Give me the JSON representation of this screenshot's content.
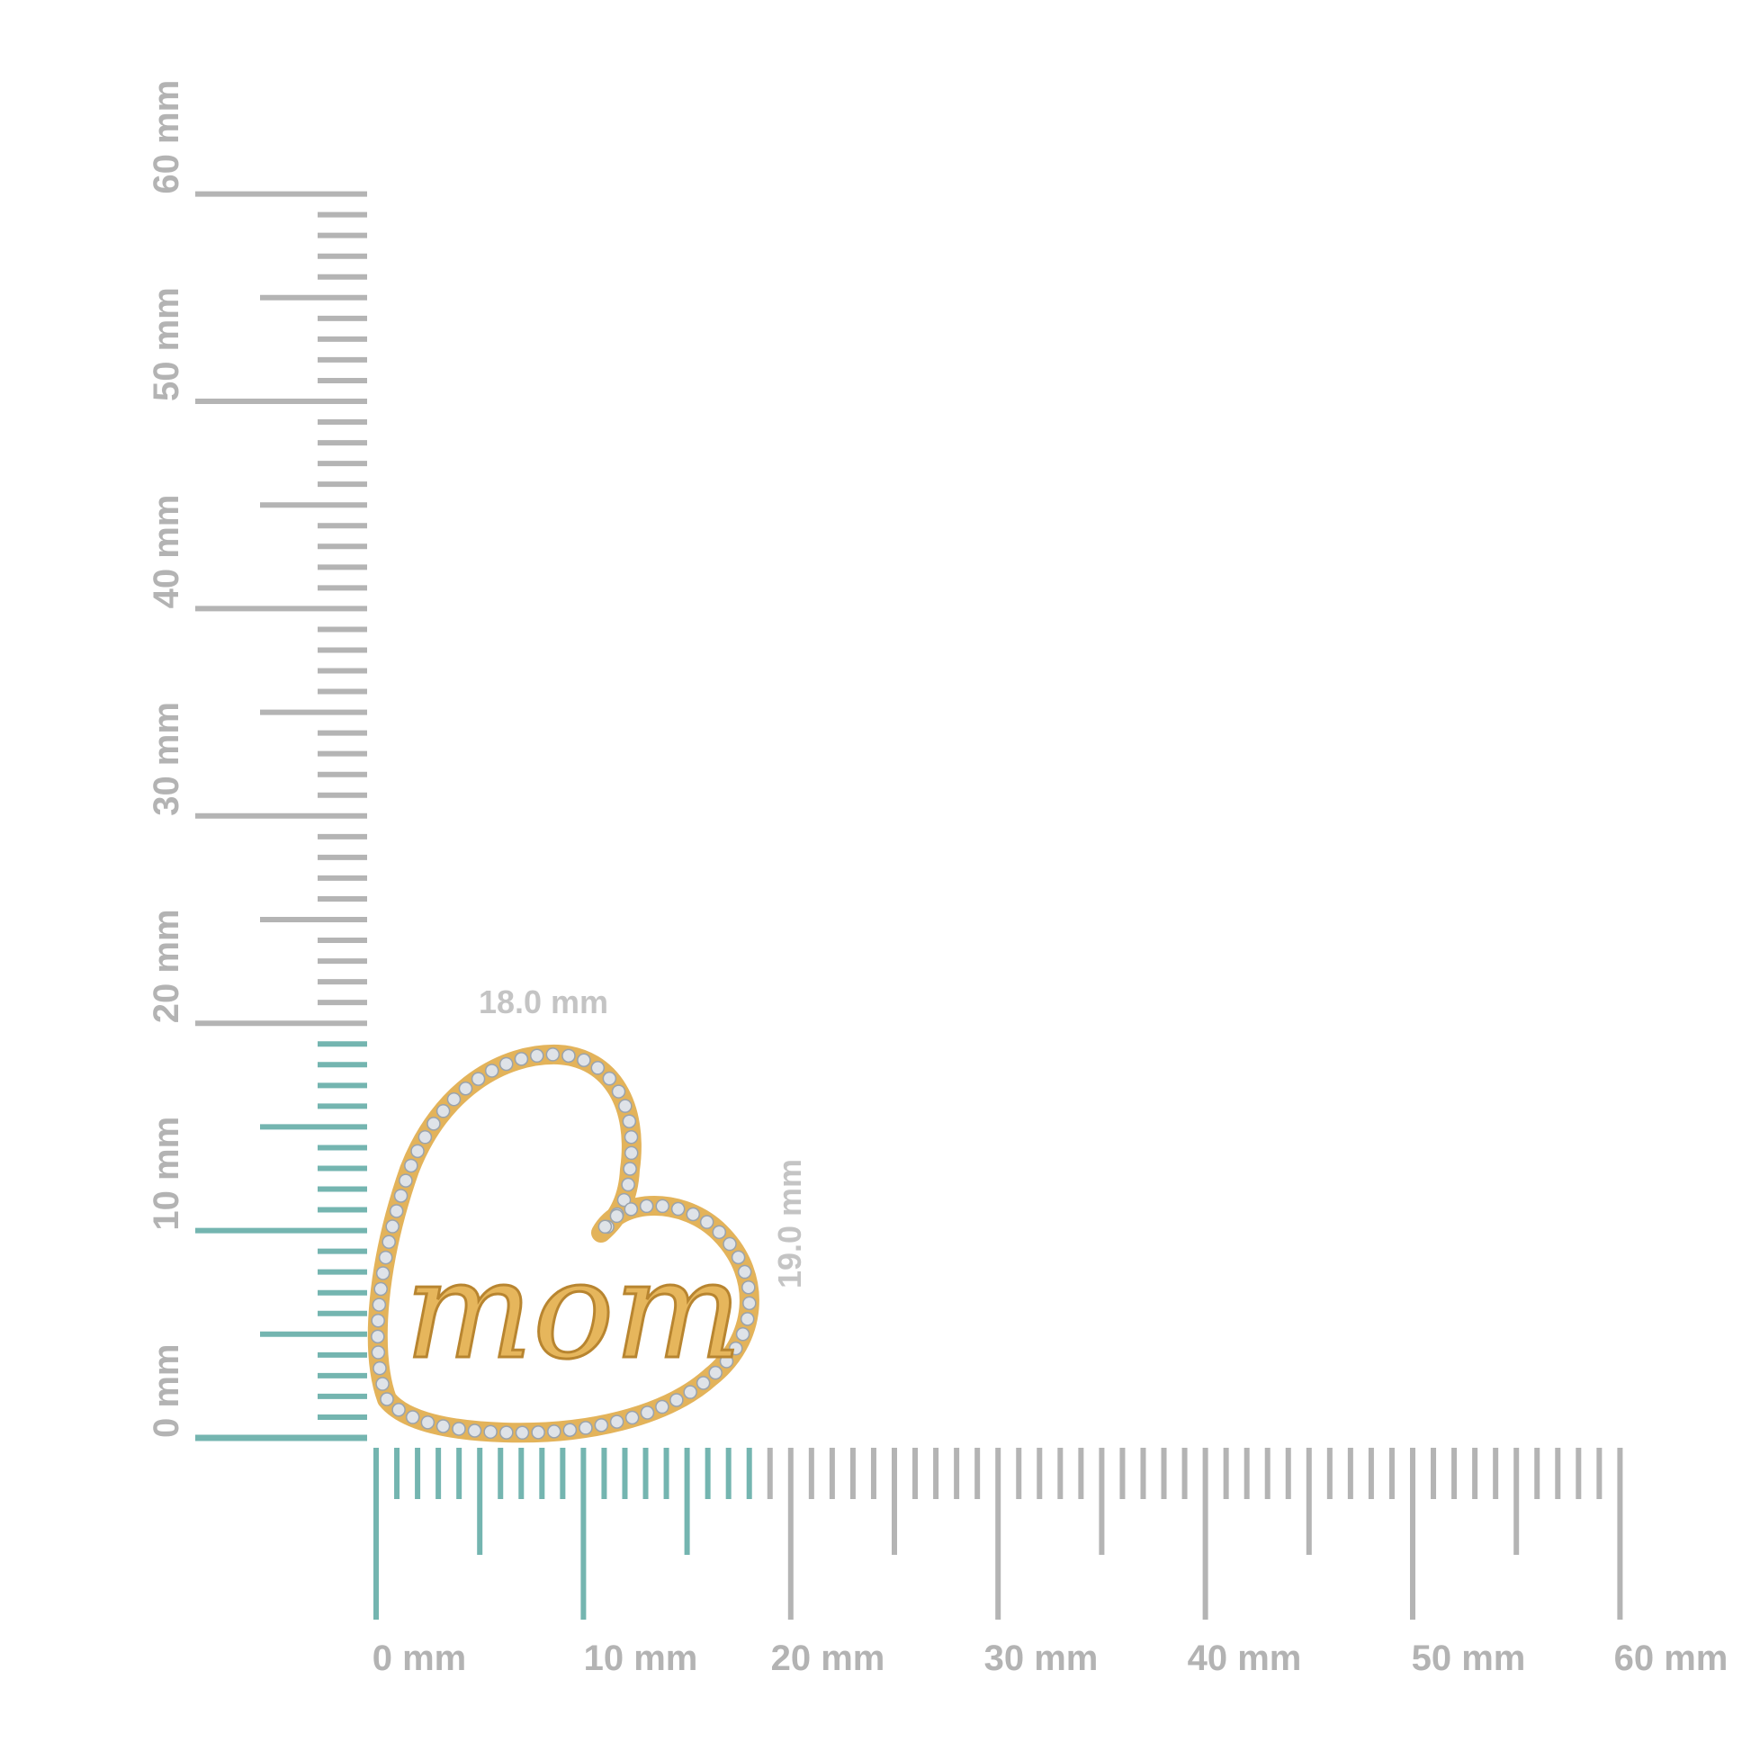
{
  "colors": {
    "teal": "#74b5b0",
    "gray": "#b4b4b4",
    "gold": "#e3b35a",
    "gold_dark": "#c9923a",
    "stone": "#dfe3e8"
  },
  "vertical_ruler": {
    "labels": [
      "0 mm",
      "10 mm",
      "20 mm",
      "30 mm",
      "40 mm",
      "50 mm",
      "60 mm"
    ],
    "highlight_mm": 19
  },
  "horizontal_ruler": {
    "labels": [
      "0 mm",
      "10 mm",
      "20 mm",
      "30 mm",
      "40 mm",
      "50 mm",
      "60 mm"
    ],
    "highlight_mm": 18
  },
  "dimensions": {
    "width": "18.0 mm",
    "height": "19.0 mm"
  },
  "product": {
    "engraving": "mom",
    "description_icon": "heart-pendant"
  }
}
